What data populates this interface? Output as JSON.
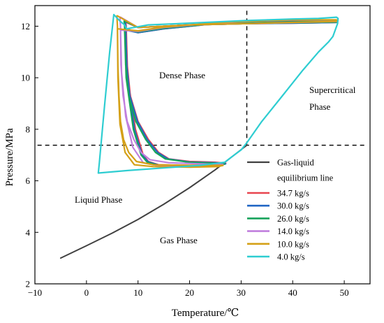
{
  "chart_data": {
    "type": "line",
    "title": "",
    "xlabel": "Temperature/℃",
    "ylabel": "Pressure/MPa",
    "xlim": [
      -10,
      55
    ],
    "ylim": [
      2,
      12.8
    ],
    "x_ticks": [
      -10,
      0,
      10,
      20,
      30,
      40,
      50
    ],
    "y_ticks": [
      2,
      4,
      6,
      8,
      10,
      12
    ],
    "critical_point": {
      "temperature": 31.1,
      "pressure": 7.38
    },
    "region_labels": {
      "dense": "Dense Phase",
      "supercritical_line1": "Supercritical",
      "supercritical_line2": "Phase",
      "liquid": "Liquid Phase",
      "gas": "Gas Phase"
    },
    "legend_position": "bottom-right",
    "series": [
      {
        "name": "Gas-liquid equilibrium line",
        "legend_line1": "Gas-liquid",
        "legend_line2": "equilibrium line",
        "color": "#404040",
        "x": [
          -5,
          0,
          5,
          10,
          15,
          20,
          25,
          30,
          31.1
        ],
        "y": [
          3.0,
          3.48,
          3.97,
          4.5,
          5.09,
          5.73,
          6.43,
          7.21,
          7.38
        ]
      },
      {
        "name": "34.7 kg/s",
        "color": "#e8454f",
        "x": [
          7.6,
          7.7,
          7.9,
          8.5,
          10,
          12,
          14,
          16,
          20,
          25,
          27,
          26,
          20,
          14,
          12,
          11,
          9.5,
          8.0,
          7.7,
          10,
          15,
          25,
          31,
          40,
          48.5,
          48.5,
          40,
          31,
          20,
          10,
          7.7
        ],
        "y": [
          12.15,
          12.0,
          10.5,
          9.3,
          8.3,
          7.6,
          7.1,
          6.85,
          6.75,
          6.72,
          6.68,
          6.62,
          6.6,
          6.62,
          6.75,
          7.0,
          8.0,
          10.0,
          11.9,
          11.75,
          11.9,
          12.1,
          12.15,
          12.2,
          12.2,
          12.15,
          12.12,
          12.1,
          12.05,
          11.95,
          12.15
        ]
      },
      {
        "name": "30.0 kg/s",
        "color": "#2167c4",
        "x": [
          7.5,
          7.6,
          7.8,
          8.4,
          9.9,
          11.8,
          13.8,
          15.8,
          20,
          25,
          27,
          26,
          20,
          14,
          12,
          10.8,
          9.3,
          7.9,
          7.6,
          10,
          15,
          25,
          31,
          40,
          48.5,
          48.5,
          40,
          31,
          20,
          10,
          7.6
        ],
        "y": [
          12.18,
          12.0,
          10.5,
          9.3,
          8.3,
          7.6,
          7.1,
          6.85,
          6.73,
          6.7,
          6.66,
          6.61,
          6.59,
          6.61,
          6.73,
          7.0,
          8.0,
          10.0,
          11.85,
          11.75,
          11.9,
          12.1,
          12.15,
          12.2,
          12.2,
          12.15,
          12.12,
          12.1,
          12.05,
          11.95,
          12.18
        ]
      },
      {
        "name": "26.0 kg/s",
        "color": "#17a35b",
        "x": [
          7.3,
          7.4,
          7.6,
          8.2,
          9.6,
          11.5,
          13.4,
          15.3,
          20,
          25,
          26.8,
          25.8,
          20,
          14,
          11.8,
          10.6,
          9.1,
          7.7,
          7.4,
          10,
          15,
          25,
          31,
          40,
          48.5,
          48.5,
          40,
          31,
          20,
          10,
          7.4
        ],
        "y": [
          12.2,
          12.0,
          10.5,
          9.3,
          8.3,
          7.6,
          7.1,
          6.85,
          6.72,
          6.68,
          6.65,
          6.6,
          6.58,
          6.6,
          6.72,
          7.0,
          8.0,
          10.0,
          11.85,
          11.78,
          11.92,
          12.1,
          12.16,
          12.22,
          12.22,
          12.16,
          12.13,
          12.1,
          12.05,
          11.95,
          12.2
        ]
      },
      {
        "name": "14.0 kg/s",
        "color": "#c07fdd",
        "x": [
          6.5,
          6.6,
          6.7,
          7.1,
          7.9,
          9.2,
          10.6,
          12.3,
          16,
          22,
          26.5,
          25.5,
          20,
          14,
          11.0,
          9.0,
          7.6,
          6.8,
          6.6,
          10,
          15,
          25,
          31,
          40,
          48.5,
          48.5,
          40,
          31,
          20,
          10,
          6.6
        ],
        "y": [
          12.35,
          12.0,
          10.5,
          9.3,
          8.3,
          7.6,
          7.1,
          6.82,
          6.7,
          6.66,
          6.63,
          6.58,
          6.56,
          6.58,
          6.7,
          7.3,
          8.5,
          10.2,
          11.85,
          11.8,
          11.95,
          12.12,
          12.18,
          12.24,
          12.24,
          12.18,
          12.14,
          12.1,
          12.05,
          11.95,
          12.35
        ]
      },
      {
        "name": "10.0 kg/s",
        "color": "#d4a017",
        "x": [
          5.9,
          6.0,
          6.1,
          6.3,
          6.6,
          7.2,
          8.2,
          9.7,
          13,
          20,
          26.5,
          25.5,
          20,
          13,
          9.3,
          7.5,
          6.5,
          6.1,
          6.0,
          10,
          15,
          25,
          31,
          40,
          48.5,
          48.5,
          40,
          31,
          20,
          10,
          6.0
        ],
        "y": [
          12.4,
          12.0,
          10.5,
          9.3,
          8.3,
          7.6,
          7.1,
          6.75,
          6.62,
          6.6,
          6.6,
          6.55,
          6.53,
          6.55,
          6.62,
          7.1,
          8.2,
          10.0,
          11.9,
          11.82,
          11.97,
          12.13,
          12.19,
          12.25,
          12.25,
          12.19,
          12.15,
          12.1,
          12.05,
          11.95,
          12.4
        ]
      },
      {
        "name": "4.0 kg/s",
        "color": "#2ecdd1",
        "x": [
          5.3,
          4.5,
          3.5,
          2.5,
          2.3,
          8,
          15,
          22,
          26.8,
          28,
          30,
          31.2,
          34,
          38,
          42,
          45,
          47,
          47.8,
          48.7,
          48.8,
          48.5,
          45,
          40,
          31,
          20,
          12,
          7.8,
          7.4,
          6.5,
          5.3
        ],
        "y": [
          12.45,
          11.0,
          8.9,
          6.7,
          6.3,
          6.4,
          6.5,
          6.6,
          6.72,
          6.9,
          7.2,
          7.5,
          8.3,
          9.3,
          10.3,
          11.0,
          11.4,
          11.6,
          12.1,
          12.3,
          12.35,
          12.3,
          12.28,
          12.22,
          12.12,
          12.05,
          11.9,
          12.05,
          12.2,
          12.45
        ]
      }
    ]
  }
}
